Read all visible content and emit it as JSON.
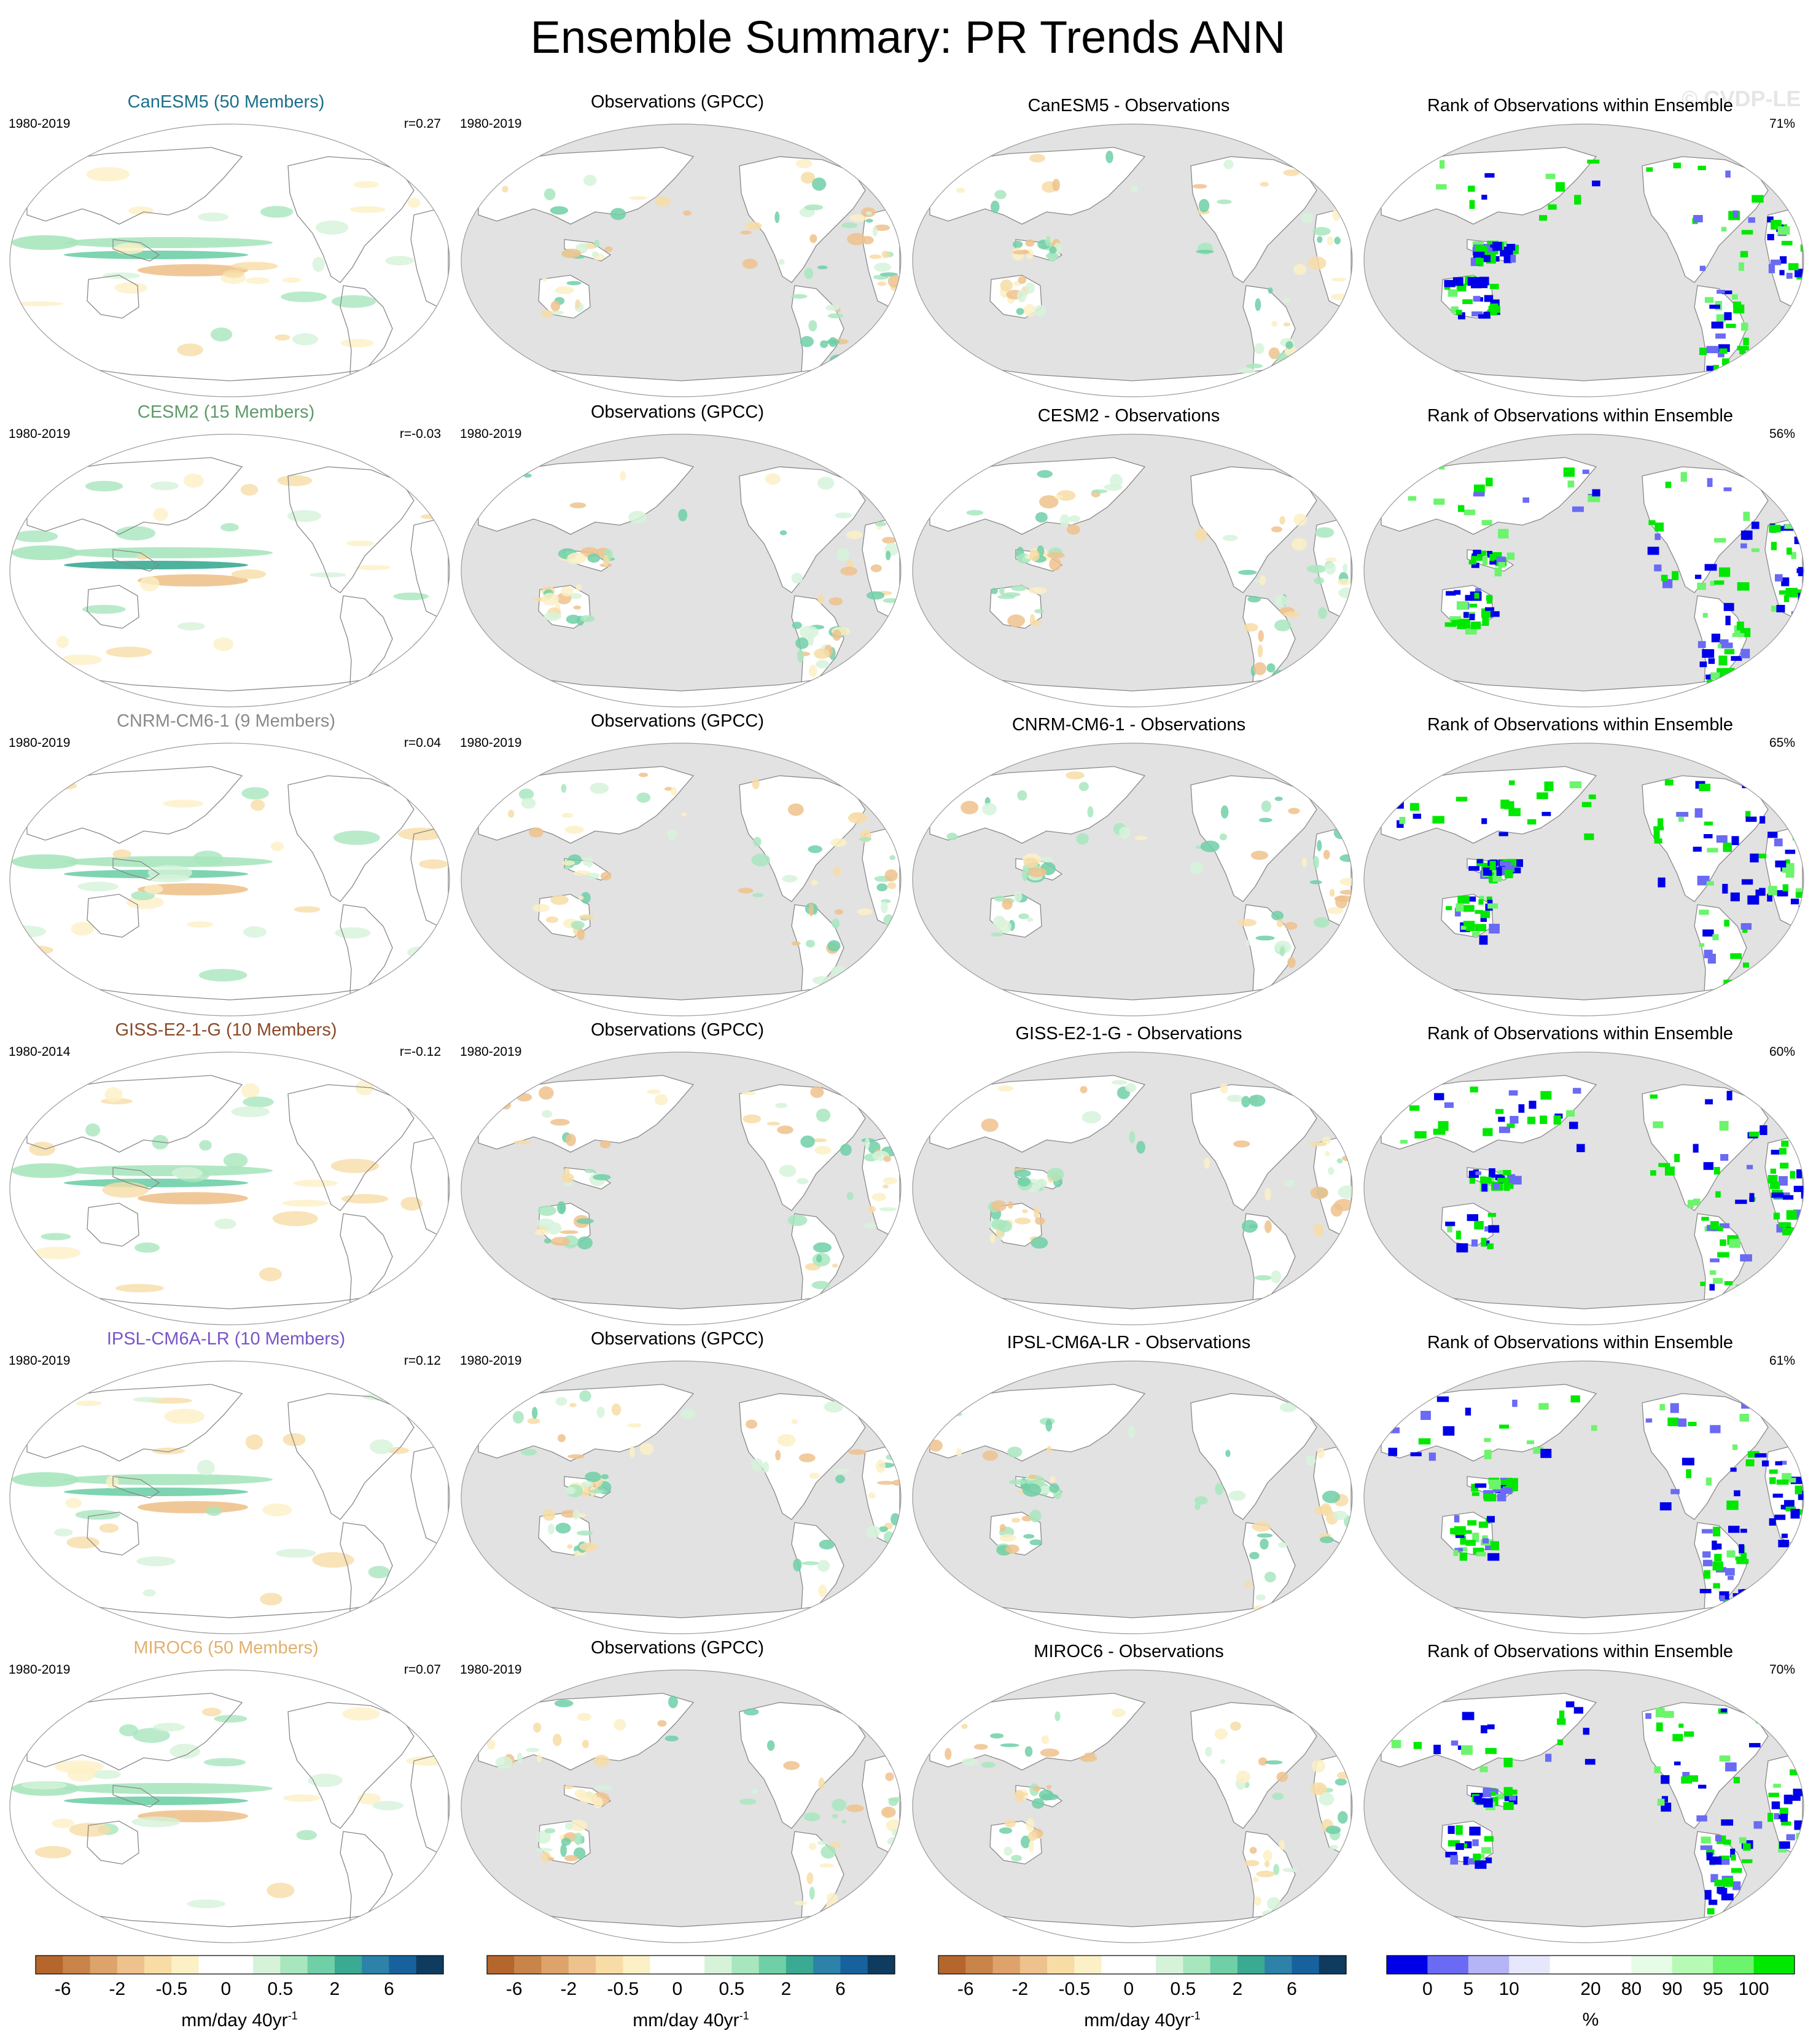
{
  "title": "Ensemble Summary: PR Trends ANN",
  "watermark": "© CVDP-LE",
  "colors": {
    "land": "#ffffff",
    "ocean_missing": "#e2e2e2",
    "outline": "#888888",
    "trend_scale": [
      "#b4662d",
      "#c98449",
      "#dda36b",
      "#eec28d",
      "#f7dca6",
      "#fcf0c6",
      "#ffffff",
      "#ffffff",
      "#d6f3da",
      "#a8e6be",
      "#6fcfa7",
      "#3aaa93",
      "#2c82a8",
      "#17629c",
      "#0f3b5e"
    ],
    "rank_scale": [
      "#0000e8",
      "#6a6af4",
      "#b4b4f6",
      "#e6e6fc",
      "#ffffff",
      "#ffffff",
      "#e6fce6",
      "#b6fab6",
      "#6cf46c",
      "#00e800"
    ]
  },
  "row_titles": [
    "CanESM5 (50 Members)",
    "CESM2 (15 Members)",
    "CNRM-CM6-1 (9 Members)",
    "GISS-E2-1-G (10 Members)",
    "IPSL-CM6A-LR (10 Members)",
    "MIROC6 (50 Members)"
  ],
  "title_colors": [
    "#1d6f8a",
    "#5f9a6a",
    "#8a8a8a",
    "#8a4a2a",
    "#7a55c8",
    "#e2b06e"
  ],
  "periods": [
    "1980-2019",
    "1980-2019",
    "1980-2019",
    "1980-2014",
    "1980-2019",
    "1980-2019"
  ],
  "obs_period": "1980-2019",
  "obs_title": "Observations (GPCC)",
  "diff_titles": [
    "CanESM5 - Observations",
    "CESM2 - Observations",
    "CNRM-CM6-1 - Observations",
    "GISS-E2-1-G - Observations",
    "IPSL-CM6A-LR - Observations",
    "MIROC6 - Observations"
  ],
  "rank_title": "Rank of Observations within Ensemble",
  "correlations": [
    "r=0.27",
    "r=-0.03",
    "r=0.04",
    "r=-0.12",
    "r=0.12",
    "r=0.07"
  ],
  "rank_percent": [
    "71%",
    "56%",
    "65%",
    "60%",
    "61%",
    "70%"
  ],
  "colorbars": {
    "trend_ticks": [
      "-6",
      "-2",
      "-0.5",
      "0",
      "0.5",
      "2",
      "6"
    ],
    "trend_label_main": "mm/day 40yr",
    "trend_label_sup": "-1",
    "rank_ticks": [
      "0",
      "5",
      "10",
      "20",
      "80",
      "90",
      "95",
      "100"
    ],
    "rank_label": "%"
  }
}
